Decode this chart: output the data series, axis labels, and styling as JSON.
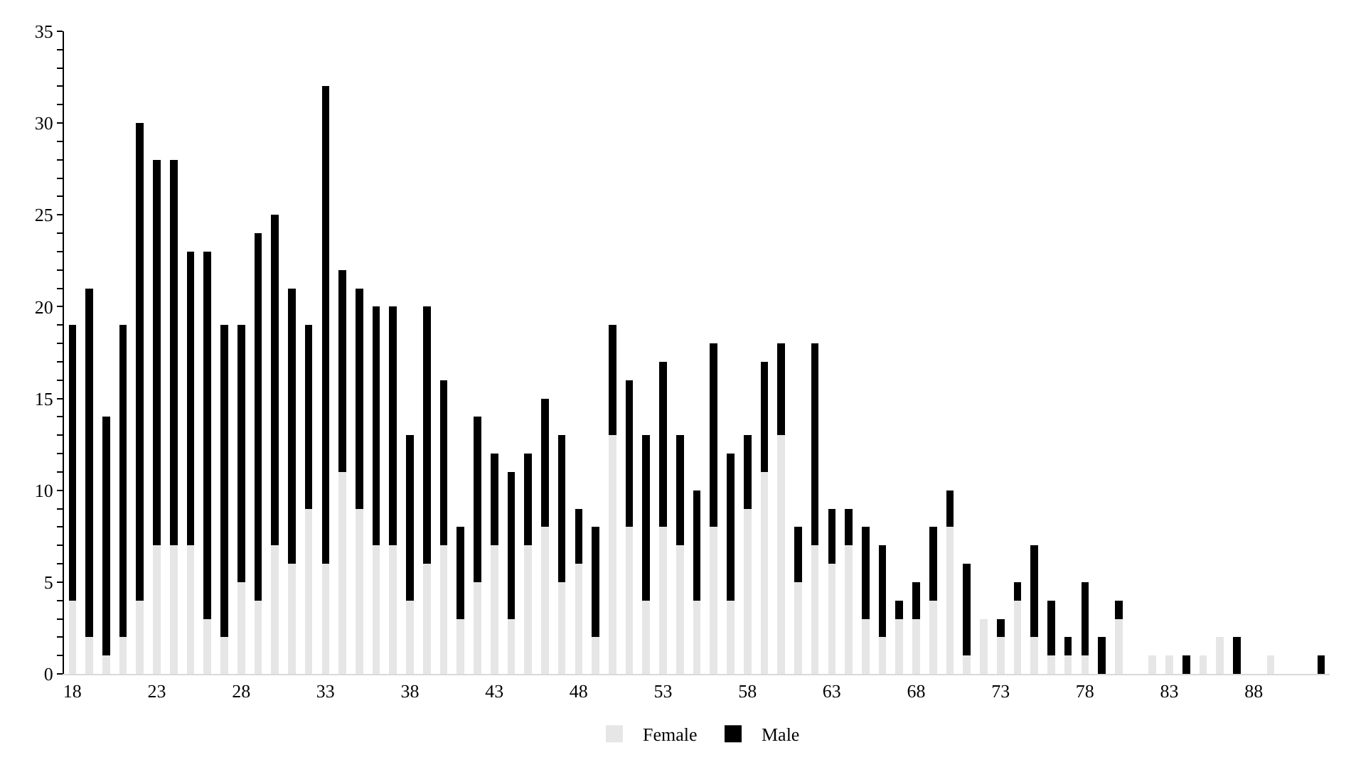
{
  "chart_data": {
    "type": "bar",
    "stacked": true,
    "categories": [
      "18",
      null,
      null,
      null,
      null,
      "23",
      null,
      null,
      null,
      null,
      "28",
      null,
      null,
      null,
      null,
      "33",
      null,
      null,
      null,
      null,
      "38",
      null,
      null,
      null,
      null,
      "43",
      null,
      null,
      null,
      null,
      "48",
      null,
      null,
      null,
      null,
      "53",
      null,
      null,
      null,
      null,
      "58",
      null,
      null,
      null,
      null,
      "63",
      null,
      null,
      null,
      null,
      "68",
      null,
      null,
      null,
      null,
      "73",
      null,
      null,
      null,
      null,
      "78",
      null,
      null,
      null,
      null,
      "83",
      null,
      null,
      null,
      null,
      "88",
      null,
      null,
      null,
      null
    ],
    "series": [
      {
        "name": "Female",
        "color": "#e6e6e6",
        "values": [
          4,
          2,
          1,
          2,
          4,
          7,
          7,
          7,
          3,
          2,
          5,
          4,
          7,
          6,
          9,
          6,
          11,
          9,
          7,
          7,
          4,
          6,
          7,
          3,
          5,
          7,
          3,
          7,
          8,
          5,
          6,
          2,
          13,
          8,
          4,
          8,
          7,
          4,
          8,
          4,
          9,
          11,
          13,
          5,
          7,
          6,
          7,
          3,
          2,
          3,
          3,
          4,
          8,
          1,
          3,
          2,
          4,
          2,
          1,
          1,
          1,
          0,
          3,
          0,
          1,
          1,
          0,
          1,
          2,
          0,
          0,
          1,
          0,
          0,
          0
        ]
      },
      {
        "name": "Male",
        "color": "#000000",
        "values": [
          15,
          19,
          13,
          17,
          26,
          21,
          21,
          16,
          20,
          17,
          14,
          20,
          18,
          15,
          10,
          26,
          11,
          12,
          13,
          13,
          9,
          14,
          9,
          5,
          9,
          5,
          8,
          5,
          7,
          8,
          3,
          6,
          6,
          8,
          9,
          9,
          6,
          6,
          10,
          8,
          4,
          6,
          5,
          3,
          11,
          3,
          2,
          5,
          5,
          1,
          2,
          4,
          2,
          5,
          0,
          1,
          1,
          5,
          3,
          1,
          4,
          2,
          1,
          0,
          0,
          0,
          1,
          0,
          0,
          2,
          0,
          0,
          0,
          0,
          1
        ]
      }
    ],
    "ylim": [
      0,
      35
    ],
    "yticks": [
      0,
      {
        "value": 1,
        "label": null
      },
      {
        "value": 2,
        "label": null
      },
      {
        "value": 3,
        "label": null
      },
      {
        "value": 4,
        "label": null
      },
      5,
      {
        "value": 6,
        "label": null
      },
      {
        "value": 7,
        "label": null
      },
      {
        "value": 8,
        "label": null
      },
      {
        "value": 9,
        "label": null
      },
      10,
      {
        "value": 11,
        "label": null
      },
      {
        "value": 12,
        "label": null
      },
      {
        "value": 13,
        "label": null
      },
      {
        "value": 14,
        "label": null
      },
      15,
      {
        "value": 16,
        "label": null
      },
      {
        "value": 17,
        "label": null
      },
      {
        "value": 18,
        "label": null
      },
      {
        "value": 19,
        "label": null
      },
      20,
      {
        "value": 21,
        "label": null
      },
      {
        "value": 22,
        "label": null
      },
      {
        "value": 23,
        "label": null
      },
      {
        "value": 24,
        "label": null
      },
      25,
      {
        "value": 26,
        "label": null
      },
      {
        "value": 27,
        "label": null
      },
      {
        "value": 28,
        "label": null
      },
      {
        "value": 29,
        "label": null
      },
      30,
      {
        "value": 31,
        "label": null
      },
      {
        "value": 32,
        "label": null
      },
      {
        "value": 33,
        "label": null
      },
      {
        "value": 34,
        "label": null
      },
      35
    ],
    "legend": "bottom"
  }
}
